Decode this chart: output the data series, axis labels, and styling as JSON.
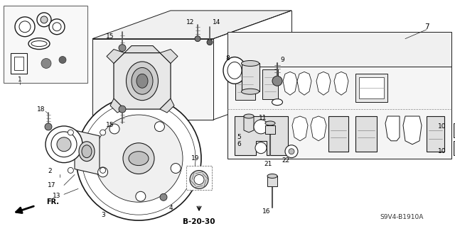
{
  "fig_width": 6.4,
  "fig_height": 3.19,
  "dpi": 100,
  "diagram_code": "S9V4-B1910A",
  "page_ref": "B-20-30",
  "bg": "#ffffff",
  "lc": "#1a1a1a",
  "fs": 6.5
}
